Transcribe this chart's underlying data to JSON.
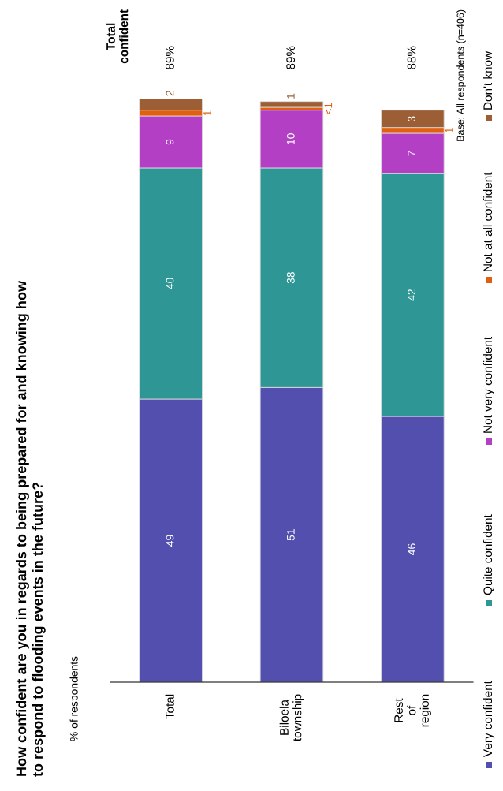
{
  "chart_data": {
    "type": "bar",
    "stacked": true,
    "title": "How confident are you in regards to being prepared for and knowing how\nto respond to flooding events in the future?",
    "ylabel": "% of respondents",
    "categories": [
      "Total",
      "Biloela township",
      "Rest of region"
    ],
    "series": [
      {
        "name": "Very confident",
        "color": "#524fae",
        "values": [
          49,
          51,
          46
        ],
        "value_labels": [
          "49",
          "51",
          "46"
        ]
      },
      {
        "name": "Quite confident",
        "color": "#2f9696",
        "values": [
          40,
          38,
          42
        ],
        "value_labels": [
          "40",
          "38",
          "42"
        ]
      },
      {
        "name": "Not very confident",
        "color": "#b23fc4",
        "values": [
          9,
          10,
          7
        ],
        "value_labels": [
          "9",
          "10",
          "7"
        ]
      },
      {
        "name": "Not at all confident",
        "color": "#e0600f",
        "values": [
          1,
          0.5,
          1
        ],
        "value_labels": [
          "1",
          "<1",
          "1"
        ]
      },
      {
        "name": "Don't know",
        "color": "#9c5f35",
        "values": [
          2,
          1,
          3
        ],
        "value_labels": [
          "2",
          "1",
          "3"
        ]
      }
    ],
    "legend": "bottom",
    "annotations": [
      "Total confident",
      "89%",
      "89%",
      "88%",
      "Base: All respondents (n=406)"
    ]
  }
}
